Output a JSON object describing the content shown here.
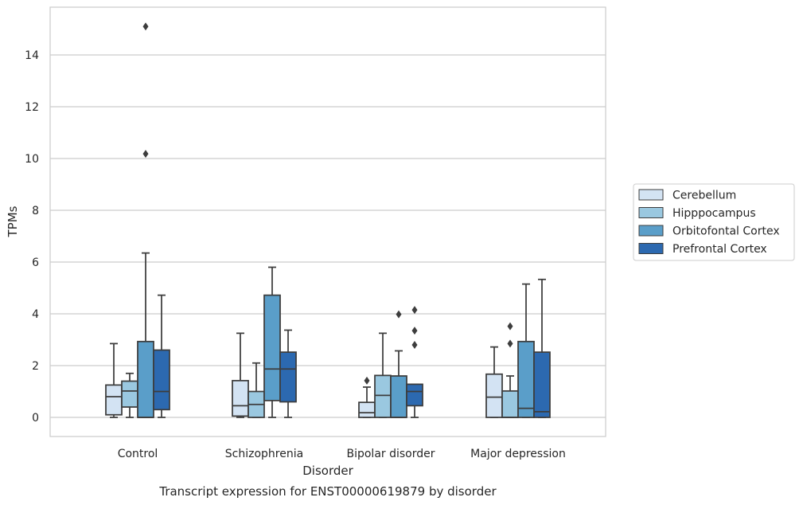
{
  "caption": "Transcript expression for ENST00000619879 by disorder",
  "chart_data": {
    "type": "box",
    "xlabel": "Disorder",
    "ylabel": "TPMs",
    "ylim": [
      -0.75,
      15.75
    ],
    "yticks": [
      0,
      2,
      4,
      6,
      8,
      10,
      12,
      14
    ],
    "grid": true,
    "legend_position": "right",
    "categories": [
      "Control",
      "Schizophrenia",
      "Bipolar disorder",
      "Major depression"
    ],
    "series": [
      {
        "name": "Cerebellum",
        "color": "#d3e3f3",
        "boxes": [
          {
            "whislo": 0.0,
            "q1": 0.1,
            "med": 0.8,
            "q3": 1.25,
            "whishi": 2.85,
            "fliers": []
          },
          {
            "whislo": 0.0,
            "q1": 0.05,
            "med": 0.45,
            "q3": 1.42,
            "whishi": 3.25,
            "fliers": []
          },
          {
            "whislo": 0.0,
            "q1": 0.0,
            "med": 0.18,
            "q3": 0.58,
            "whishi": 1.17,
            "fliers": [
              1.42
            ]
          },
          {
            "whislo": 0.0,
            "q1": 0.0,
            "med": 0.78,
            "q3": 1.67,
            "whishi": 2.72,
            "fliers": []
          }
        ]
      },
      {
        "name": "Hipppocampus",
        "color": "#9ac8e0",
        "boxes": [
          {
            "whislo": 0.0,
            "q1": 0.4,
            "med": 1.02,
            "q3": 1.4,
            "whishi": 1.7,
            "fliers": []
          },
          {
            "whislo": 0.0,
            "q1": 0.0,
            "med": 0.5,
            "q3": 1.0,
            "whishi": 2.1,
            "fliers": []
          },
          {
            "whislo": 0.0,
            "q1": 0.0,
            "med": 0.85,
            "q3": 1.62,
            "whishi": 3.25,
            "fliers": []
          },
          {
            "whislo": 0.0,
            "q1": 0.0,
            "med": 0.0,
            "q3": 1.02,
            "whishi": 1.6,
            "fliers": [
              2.85,
              3.52
            ]
          }
        ]
      },
      {
        "name": "Orbitofontal Cortex",
        "color": "#5a9ec9",
        "boxes": [
          {
            "whislo": 0.0,
            "q1": 0.0,
            "med": 0.0,
            "q3": 2.93,
            "whishi": 6.35,
            "fliers": [
              10.18,
              15.1
            ]
          },
          {
            "whislo": 0.0,
            "q1": 0.65,
            "med": 1.87,
            "q3": 4.72,
            "whishi": 5.8,
            "fliers": []
          },
          {
            "whislo": 0.0,
            "q1": 0.0,
            "med": 0.0,
            "q3": 1.6,
            "whishi": 2.57,
            "fliers": [
              3.98
            ]
          },
          {
            "whislo": 0.0,
            "q1": 0.0,
            "med": 0.35,
            "q3": 2.93,
            "whishi": 5.15,
            "fliers": []
          }
        ]
      },
      {
        "name": "Prefrontal Cortex",
        "color": "#2c69b0",
        "boxes": [
          {
            "whislo": 0.0,
            "q1": 0.3,
            "med": 1.0,
            "q3": 2.6,
            "whishi": 4.72,
            "fliers": []
          },
          {
            "whislo": 0.0,
            "q1": 0.6,
            "med": 1.87,
            "q3": 2.52,
            "whishi": 3.37,
            "fliers": []
          },
          {
            "whislo": 0.0,
            "q1": 0.45,
            "med": 1.0,
            "q3": 1.28,
            "whishi": 1.28,
            "fliers": [
              2.8,
              3.35,
              4.15
            ]
          },
          {
            "whislo": 0.0,
            "q1": 0.0,
            "med": 0.22,
            "q3": 2.52,
            "whishi": 5.33,
            "fliers": []
          }
        ]
      }
    ]
  }
}
